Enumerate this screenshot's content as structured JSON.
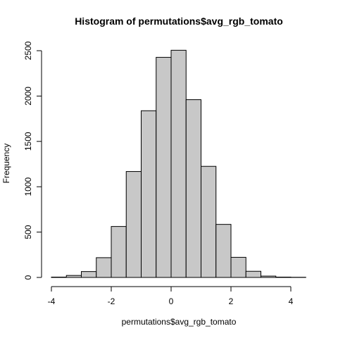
{
  "chart_data": {
    "type": "bar",
    "title": "Histogram of permutations$avg_rgb_tomato",
    "xlabel": "permutations$avg_rgb_tomato",
    "ylabel": "Frequency",
    "bins": [
      {
        "start": -4.0,
        "end": -3.5,
        "count": 4
      },
      {
        "start": -3.5,
        "end": -3.0,
        "count": 22
      },
      {
        "start": -3.0,
        "end": -2.5,
        "count": 65
      },
      {
        "start": -2.5,
        "end": -2.0,
        "count": 218
      },
      {
        "start": -2.0,
        "end": -1.5,
        "count": 562
      },
      {
        "start": -1.5,
        "end": -1.0,
        "count": 1168
      },
      {
        "start": -1.0,
        "end": -0.5,
        "count": 1838
      },
      {
        "start": -0.5,
        "end": 0.0,
        "count": 2427
      },
      {
        "start": 0.0,
        "end": 0.5,
        "count": 2505
      },
      {
        "start": 0.5,
        "end": 1.0,
        "count": 1960
      },
      {
        "start": 1.0,
        "end": 1.5,
        "count": 1225
      },
      {
        "start": 1.5,
        "end": 2.0,
        "count": 585
      },
      {
        "start": 2.0,
        "end": 2.5,
        "count": 222
      },
      {
        "start": 2.5,
        "end": 3.0,
        "count": 68
      },
      {
        "start": 3.0,
        "end": 3.5,
        "count": 15
      },
      {
        "start": 3.5,
        "end": 4.0,
        "count": 4
      },
      {
        "start": 4.0,
        "end": 4.5,
        "count": 2
      }
    ],
    "xlim": [
      -4,
      4.5
    ],
    "ylim": [
      0,
      2500
    ],
    "xticks": [
      -4,
      -2,
      0,
      2,
      4
    ],
    "xtick_labels": [
      "-4",
      "-2",
      "0",
      "2",
      "4"
    ],
    "yticks": [
      0,
      500,
      1000,
      1500,
      2000,
      2500
    ],
    "ytick_labels": [
      "0",
      "500",
      "1000",
      "1500",
      "2000",
      "2500"
    ],
    "bar_color": "#c8c8c8",
    "grid": false,
    "legend": "none"
  }
}
